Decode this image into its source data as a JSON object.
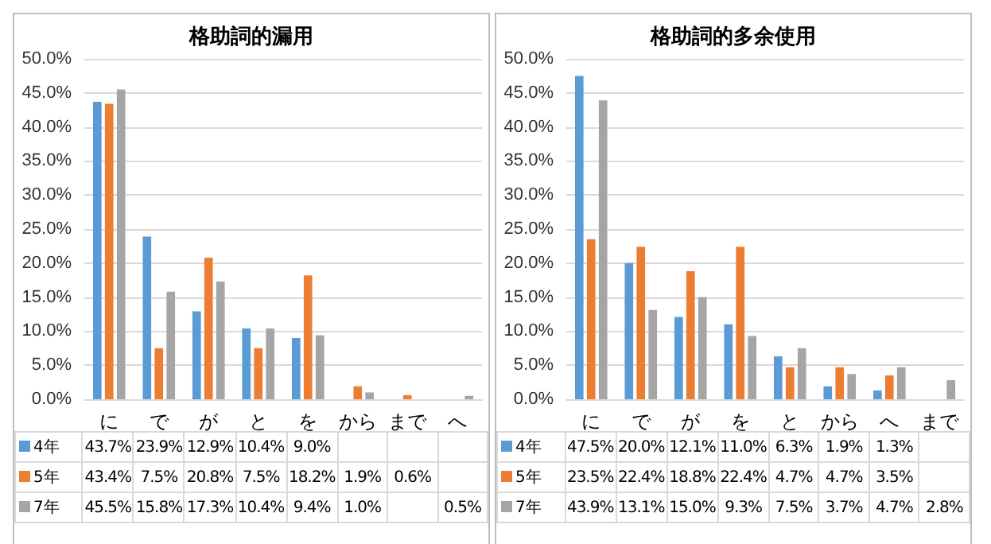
{
  "chart_data": [
    {
      "type": "bar",
      "title": "格助詞的漏用",
      "categories": [
        "に",
        "で",
        "が",
        "と",
        "を",
        "から",
        "まで",
        "へ"
      ],
      "series": [
        {
          "name": "4年",
          "color": "#5b9bd5",
          "values": [
            43.7,
            23.9,
            12.9,
            10.4,
            9.0,
            null,
            null,
            null
          ],
          "value_labels": [
            "43.7%",
            "23.9%",
            "12.9%",
            "10.4%",
            "9.0%",
            null,
            null,
            null
          ]
        },
        {
          "name": "5年",
          "color": "#ed7d31",
          "values": [
            43.4,
            7.5,
            20.8,
            7.5,
            18.2,
            1.9,
            0.6,
            null
          ],
          "value_labels": [
            "43.4%",
            "7.5%",
            "20.8%",
            "7.5%",
            "18.2%",
            "1.9%",
            "0.6%",
            null
          ]
        },
        {
          "name": "7年",
          "color": "#a5a5a5",
          "values": [
            45.5,
            15.8,
            17.3,
            10.4,
            9.4,
            1.0,
            null,
            0.5
          ],
          "value_labels": [
            "45.5%",
            "15.8%",
            "17.3%",
            "10.4%",
            "9.4%",
            "1.0%",
            null,
            "0.5%"
          ]
        }
      ],
      "ylim": [
        0,
        50
      ],
      "yticks": [
        {
          "value": 0,
          "label": "0.0%"
        },
        {
          "value": 5,
          "label": "5.0%"
        },
        {
          "value": 10,
          "label": "10.0%"
        },
        {
          "value": 15,
          "label": "15.0%"
        },
        {
          "value": 20,
          "label": "20.0%"
        },
        {
          "value": 25,
          "label": "25.0%"
        },
        {
          "value": 30,
          "label": "30.0%"
        },
        {
          "value": 35,
          "label": "35.0%"
        },
        {
          "value": 40,
          "label": "40.0%"
        },
        {
          "value": 45,
          "label": "45.0%"
        },
        {
          "value": 50,
          "label": "50.0%"
        }
      ],
      "grid": "y",
      "legend": "bottom"
    },
    {
      "type": "bar",
      "title": "格助詞的多余使用",
      "categories": [
        "に",
        "で",
        "が",
        "を",
        "と",
        "から",
        "へ",
        "まで"
      ],
      "series": [
        {
          "name": "4年",
          "color": "#5b9bd5",
          "values": [
            47.5,
            20.0,
            12.1,
            11.0,
            6.3,
            1.9,
            1.3,
            null
          ],
          "value_labels": [
            "47.5%",
            "20.0%",
            "12.1%",
            "11.0%",
            "6.3%",
            "1.9%",
            "1.3%",
            null
          ]
        },
        {
          "name": "5年",
          "color": "#ed7d31",
          "values": [
            23.5,
            22.4,
            18.8,
            22.4,
            4.7,
            4.7,
            3.5,
            null
          ],
          "value_labels": [
            "23.5%",
            "22.4%",
            "18.8%",
            "22.4%",
            "4.7%",
            "4.7%",
            "3.5%",
            null
          ]
        },
        {
          "name": "7年",
          "color": "#a5a5a5",
          "values": [
            43.9,
            13.1,
            15.0,
            9.3,
            7.5,
            3.7,
            4.7,
            2.8
          ],
          "value_labels": [
            "43.9%",
            "13.1%",
            "15.0%",
            "9.3%",
            "7.5%",
            "3.7%",
            "4.7%",
            "2.8%"
          ]
        }
      ],
      "ylim": [
        0,
        50
      ],
      "yticks": [
        {
          "value": 0,
          "label": "0.0%"
        },
        {
          "value": 5,
          "label": "5.0%"
        },
        {
          "value": 10,
          "label": "10.0%"
        },
        {
          "value": 15,
          "label": "15.0%"
        },
        {
          "value": 20,
          "label": "20.0%"
        },
        {
          "value": 25,
          "label": "25.0%"
        },
        {
          "value": 30,
          "label": "30.0%"
        },
        {
          "value": 35,
          "label": "35.0%"
        },
        {
          "value": 40,
          "label": "40.0%"
        },
        {
          "value": 45,
          "label": "45.0%"
        },
        {
          "value": 50,
          "label": "50.0%"
        }
      ],
      "grid": "y",
      "legend": "bottom"
    }
  ]
}
